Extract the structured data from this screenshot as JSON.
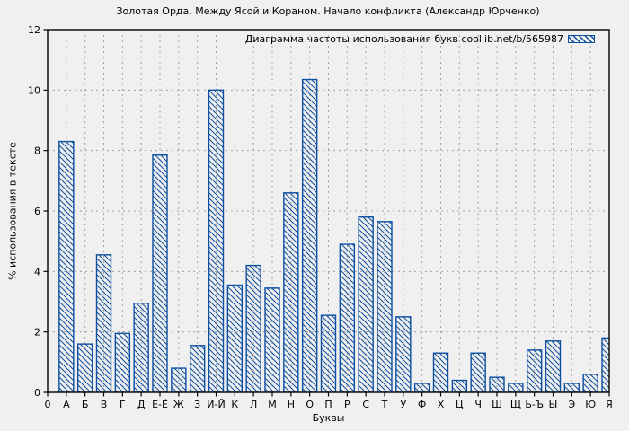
{
  "window": {
    "background": "#f0f0f0"
  },
  "chart_data": {
    "type": "bar",
    "title": "Золотая Орда. Между Ясой и Кораном. Начало конфликта (Александр Юрченко)",
    "legend": "Диаграмма частоты использования букв coollib.net/b/565987",
    "legend_position": "top-right",
    "xlabel": "Буквы",
    "ylabel": "% использования в тексте",
    "categories": [
      "0",
      "А",
      "Б",
      "В",
      "Г",
      "Д",
      "Е-Ё",
      "Ж",
      "З",
      "И-Й",
      "К",
      "Л",
      "М",
      "Н",
      "О",
      "П",
      "Р",
      "С",
      "Т",
      "У",
      "Ф",
      "Х",
      "Ц",
      "Ч",
      "Ш",
      "Щ",
      "Ь-Ъ",
      "Ы",
      "Э",
      "Ю",
      "Я"
    ],
    "values": [
      0,
      8.3,
      1.6,
      4.55,
      1.95,
      2.95,
      7.85,
      0.8,
      1.55,
      10.0,
      3.55,
      4.2,
      3.45,
      6.6,
      10.35,
      2.55,
      4.9,
      5.8,
      5.65,
      2.5,
      0.3,
      1.3,
      0.4,
      1.3,
      0.5,
      0.3,
      1.4,
      1.7,
      0.3,
      0.6,
      1.8
    ],
    "ylim": [
      0,
      12
    ],
    "yticks": [
      0,
      2,
      4,
      6,
      8,
      10,
      12
    ],
    "grid": "dashed",
    "bar_style": "hatched-backslash",
    "bar_color": "#0d4fa0",
    "grid_color": "#a3a3a3",
    "axis_color": "#000000",
    "background": "#f0f0f0"
  }
}
